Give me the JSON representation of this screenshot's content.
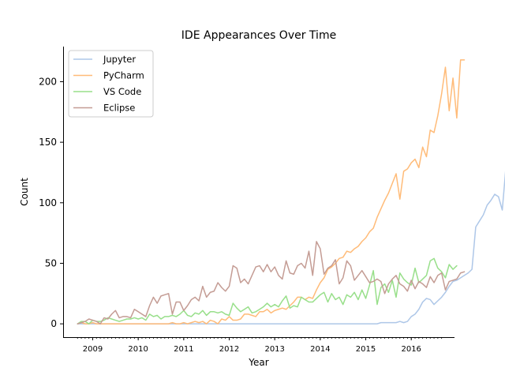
{
  "chart_data": {
    "type": "line",
    "title": "IDE Appearances Over Time",
    "xlabel": "Year",
    "ylabel": "Count",
    "xlim": [
      2008.35,
      2016.95
    ],
    "ylim": [
      -11,
      229
    ],
    "yticks": [
      0,
      50,
      100,
      150,
      200
    ],
    "xticks": [
      {
        "label": "2009",
        "pos": 2009.0
      },
      {
        "label": "2010",
        "pos": 2010.0
      },
      {
        "label": "2011",
        "pos": 2011.0
      },
      {
        "label": "2012",
        "pos": 2012.0
      },
      {
        "label": "2013",
        "pos": 2013.0
      },
      {
        "label": "2014",
        "pos": 2014.0
      },
      {
        "label": "2015",
        "pos": 2015.0
      },
      {
        "label": "2016",
        "pos": 2016.0
      }
    ],
    "grid": false,
    "legend_position": "top-left",
    "x_start": 2008.667,
    "x_step": 0.08333,
    "series": [
      {
        "name": "Jupyter",
        "color": "#aec7e8",
        "values": [
          0,
          0,
          0,
          0,
          0,
          0,
          0,
          0,
          0,
          0,
          0,
          0,
          0,
          0,
          0,
          0,
          0,
          0,
          0,
          0,
          0,
          0,
          0,
          0,
          0,
          0,
          0,
          0,
          0,
          0,
          0,
          0,
          0,
          0,
          0,
          0,
          0,
          0,
          0,
          0,
          0,
          0,
          0,
          0,
          0,
          0,
          0,
          0,
          0,
          0,
          0,
          0,
          0,
          0,
          0,
          0,
          0,
          0,
          0,
          0,
          0,
          0,
          0,
          0,
          0,
          0,
          0,
          0,
          0,
          0,
          0,
          0,
          0,
          0,
          0,
          0,
          0,
          0,
          0,
          0,
          1,
          1,
          1,
          1,
          1,
          2,
          1,
          2,
          6,
          8,
          12,
          18,
          21,
          20,
          16,
          19,
          22,
          26,
          31,
          35,
          36,
          38,
          40,
          42,
          45,
          80,
          85,
          90,
          98,
          102,
          107,
          105,
          94,
          131
        ]
      },
      {
        "name": "PyCharm",
        "color": "#ffbb78",
        "values": [
          0,
          1,
          0,
          0,
          1,
          0,
          0,
          0,
          0,
          0,
          0,
          0,
          0,
          0,
          0,
          0,
          0,
          0,
          0,
          0,
          0,
          0,
          0,
          0,
          0,
          1,
          0,
          0,
          1,
          0,
          1,
          2,
          1,
          2,
          0,
          3,
          2,
          0,
          4,
          3,
          6,
          3,
          3,
          4,
          8,
          8,
          7,
          6,
          10,
          10,
          12,
          9,
          11,
          12,
          13,
          12,
          15,
          18,
          22,
          22,
          20,
          22,
          21,
          28,
          34,
          38,
          45,
          47,
          50,
          54,
          55,
          60,
          59,
          62,
          64,
          68,
          71,
          76,
          79,
          88,
          95,
          102,
          108,
          116,
          124,
          103,
          126,
          128,
          133,
          136,
          129,
          146,
          138,
          160,
          158,
          172,
          190,
          212,
          176,
          203,
          170,
          218,
          218
        ]
      },
      {
        "name": "VS Code",
        "color": "#98df8a",
        "values": [
          0,
          2,
          2,
          0,
          3,
          2,
          2,
          3,
          5,
          4,
          3,
          2,
          3,
          4,
          4,
          5,
          4,
          5,
          3,
          8,
          6,
          7,
          4,
          6,
          6,
          7,
          6,
          8,
          11,
          7,
          6,
          9,
          8,
          11,
          7,
          10,
          10,
          9,
          10,
          8,
          7,
          17,
          13,
          10,
          12,
          14,
          9,
          10,
          12,
          14,
          17,
          14,
          16,
          14,
          19,
          23,
          13,
          15,
          14,
          22,
          20,
          18,
          18,
          21,
          24,
          26,
          18,
          25,
          20,
          22,
          16,
          24,
          22,
          26,
          20,
          28,
          21,
          32,
          44,
          16,
          30,
          33,
          26,
          36,
          22,
          42,
          37,
          34,
          32,
          46,
          34,
          37,
          40,
          52,
          54,
          46,
          43,
          38,
          49,
          45,
          48
        ]
      },
      {
        "name": "Eclipse",
        "color": "#c49c94",
        "values": [
          0,
          1,
          2,
          4,
          3,
          2,
          0,
          5,
          4,
          8,
          11,
          5,
          6,
          6,
          5,
          12,
          10,
          8,
          6,
          15,
          22,
          17,
          23,
          24,
          25,
          8,
          18,
          18,
          11,
          15,
          20,
          22,
          19,
          31,
          22,
          26,
          27,
          34,
          30,
          27,
          31,
          48,
          46,
          34,
          37,
          33,
          40,
          47,
          48,
          43,
          49,
          43,
          47,
          40,
          37,
          52,
          42,
          41,
          48,
          50,
          46,
          60,
          40,
          68,
          62,
          41,
          46,
          48,
          53,
          33,
          38,
          52,
          48,
          36,
          40,
          44,
          39,
          34,
          35,
          37,
          35,
          25,
          33,
          37,
          40,
          33,
          31,
          27,
          36,
          29,
          35,
          33,
          30,
          39,
          34,
          40,
          42,
          28,
          35,
          36,
          37,
          42,
          43
        ]
      }
    ]
  }
}
